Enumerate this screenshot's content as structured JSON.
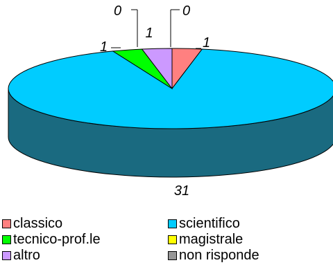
{
  "chart_data": {
    "type": "pie",
    "style": "3d",
    "categories": [
      "classico",
      "scientifico",
      "tecnico-prof.le",
      "magistrale",
      "altro",
      "non risponde"
    ],
    "values": [
      1,
      31,
      1,
      0,
      1,
      0
    ],
    "data_labels": [
      "1",
      "31",
      "1",
      "0",
      "1",
      "0"
    ],
    "colors": [
      "#ff8080",
      "#00ccff",
      "#00ff00",
      "#ffff00",
      "#cc99ff",
      "#969696"
    ],
    "side_color": "#1a6a80",
    "legend_position": "bottom"
  }
}
